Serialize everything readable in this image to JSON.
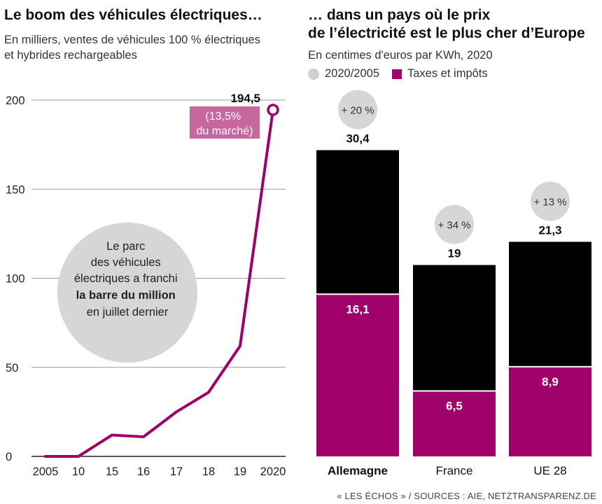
{
  "left": {
    "title": "Le boom des véhicules électriques…",
    "subtitle_line1": "En milliers, ventes de véhicules 100 % électriques",
    "subtitle_line2": "et hybrides rechargeables",
    "callout_value": "194,5",
    "callout_share_line1": "(13,5%",
    "callout_share_line2": "du marché)",
    "bubble_lines": [
      "Le parc",
      "des véhicules",
      "électriques a franchi"
    ],
    "bubble_bold": "la barre du million",
    "bubble_last": "en juillet dernier"
  },
  "right": {
    "title_line1": "… dans un pays où le prix",
    "title_line2": "de l’électricité est le plus cher d’Europe",
    "subtitle": "En centimes d'euros par KWh, 2020",
    "legend_growth": "2020/2005",
    "legend_tax": "Taxes et impôts"
  },
  "source": "« LES ÉCHOS » / SOURCES : AIE, NETZTRANSPARENZ.DE",
  "colors": {
    "accent": "#a0006a",
    "black": "#000000",
    "bubble": "#d6d6d6",
    "callout_bg": "#c8669e"
  },
  "chart_data": [
    {
      "type": "line",
      "x": [
        "2005",
        "10",
        "15",
        "16",
        "17",
        "18",
        "19",
        "2020"
      ],
      "values": [
        0,
        0,
        12,
        11,
        25,
        36,
        62,
        194.5
      ],
      "yticks": [
        "0",
        "50",
        "100",
        "150",
        "200"
      ],
      "ylim": [
        0,
        200
      ],
      "grid": true
    },
    {
      "type": "bar",
      "stacked": true,
      "categories": [
        "Allemagne",
        "France",
        "UE 28"
      ],
      "totals": [
        30.4,
        19,
        21.3
      ],
      "total_labels": [
        "30,4",
        "19",
        "21,3"
      ],
      "series": [
        {
          "name": "Taxes et impôts",
          "values": [
            16.1,
            6.5,
            8.9
          ],
          "labels": [
            "16,1",
            "6,5",
            "8,9"
          ]
        }
      ],
      "growth_2020_2005": [
        "+ 20 %",
        "+ 34 %",
        "+ 13 %"
      ]
    }
  ]
}
